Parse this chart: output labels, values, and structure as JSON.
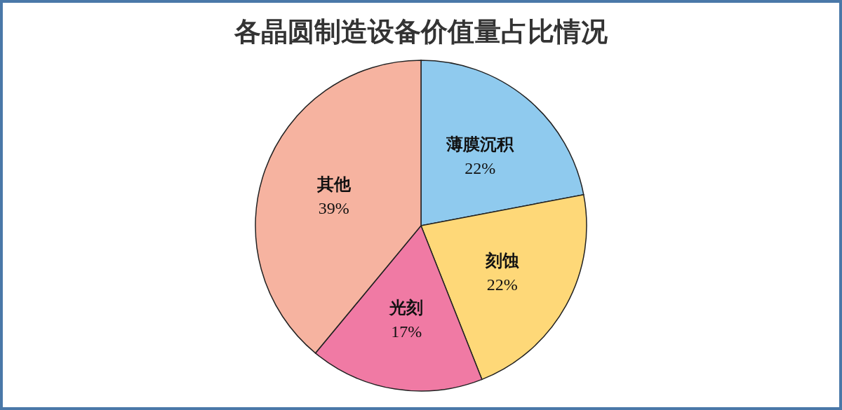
{
  "chart_data": {
    "type": "pie",
    "title": "各晶圆制造设备价值量占比情况",
    "categories": [
      "薄膜沉积",
      "刻蚀",
      "光刻",
      "其他"
    ],
    "values": [
      22,
      22,
      17,
      39
    ],
    "value_labels": [
      "22%",
      "22%",
      "17%",
      "39%"
    ],
    "colors": [
      "#8fcaee",
      "#fed878",
      "#f07aa4",
      "#f6b3a0"
    ]
  }
}
